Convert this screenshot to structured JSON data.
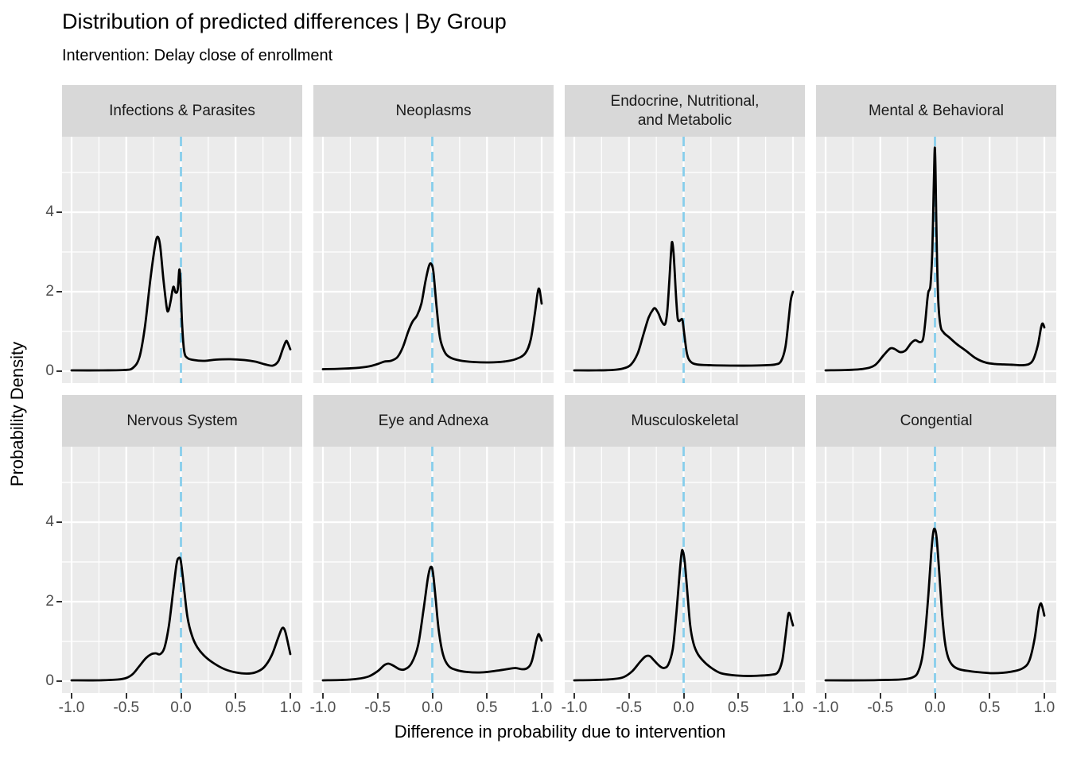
{
  "title": "Distribution of predicted differences | By Group",
  "subtitle": "Intervention: Delay close of enrollment",
  "chart_data": {
    "type": "line",
    "title": "Distribution of predicted differences | By Group",
    "subtitle": "Intervention: Delay close of enrollment",
    "xlabel": "Difference in probability due to intervention",
    "ylabel": "Probability Density",
    "x_ticks": [
      "-1.0",
      "-0.5",
      "0.0",
      "0.5",
      "1.0"
    ],
    "x_tick_values": [
      -1,
      -0.5,
      0,
      0.5,
      1
    ],
    "y_ticks": [
      "0",
      "2",
      "4"
    ],
    "y_tick_values": [
      0,
      2,
      4
    ],
    "x_minor_gridlines": [
      -0.75,
      -0.25,
      0.25,
      0.75
    ],
    "y_minor_gridlines": [
      1,
      3,
      5
    ],
    "xlim": [
      -1.09,
      1.11
    ],
    "ylim": [
      -0.3,
      5.9
    ],
    "grid": "white major and minor gridlines on gray panel background",
    "legend_position": "none",
    "facet_layout": {
      "rows": 2,
      "cols": 4
    },
    "reference_line": {
      "x": 0,
      "style": "dashed",
      "color": "#87CEEB"
    },
    "facets": [
      {
        "title": "Infections & Parasites",
        "points": [
          [
            -1,
            0.02
          ],
          [
            -0.72,
            0.02
          ],
          [
            -0.52,
            0.03
          ],
          [
            -0.44,
            0.08
          ],
          [
            -0.38,
            0.35
          ],
          [
            -0.33,
            1.1
          ],
          [
            -0.28,
            2.3
          ],
          [
            -0.24,
            3.1
          ],
          [
            -0.215,
            3.38
          ],
          [
            -0.19,
            3.15
          ],
          [
            -0.16,
            2.3
          ],
          [
            -0.13,
            1.6
          ],
          [
            -0.115,
            1.52
          ],
          [
            -0.095,
            1.75
          ],
          [
            -0.07,
            2.12
          ],
          [
            -0.05,
            1.98
          ],
          [
            -0.03,
            2.05
          ],
          [
            -0.015,
            2.55
          ],
          [
            -0.005,
            2.3
          ],
          [
            0.01,
            1.2
          ],
          [
            0.03,
            0.5
          ],
          [
            0.06,
            0.33
          ],
          [
            0.12,
            0.28
          ],
          [
            0.22,
            0.26
          ],
          [
            0.32,
            0.29
          ],
          [
            0.45,
            0.3
          ],
          [
            0.58,
            0.28
          ],
          [
            0.68,
            0.24
          ],
          [
            0.77,
            0.17
          ],
          [
            0.84,
            0.14
          ],
          [
            0.89,
            0.25
          ],
          [
            0.93,
            0.55
          ],
          [
            0.96,
            0.75
          ],
          [
            0.975,
            0.72
          ],
          [
            1,
            0.55
          ]
        ]
      },
      {
        "title": "Neoplasms",
        "points": [
          [
            -1,
            0.05
          ],
          [
            -0.85,
            0.06
          ],
          [
            -0.7,
            0.08
          ],
          [
            -0.58,
            0.12
          ],
          [
            -0.5,
            0.18
          ],
          [
            -0.44,
            0.24
          ],
          [
            -0.38,
            0.26
          ],
          [
            -0.32,
            0.35
          ],
          [
            -0.27,
            0.6
          ],
          [
            -0.22,
            1.0
          ],
          [
            -0.18,
            1.25
          ],
          [
            -0.14,
            1.4
          ],
          [
            -0.1,
            1.7
          ],
          [
            -0.06,
            2.3
          ],
          [
            -0.03,
            2.65
          ],
          [
            -0.01,
            2.7
          ],
          [
            0.01,
            2.5
          ],
          [
            0.04,
            1.6
          ],
          [
            0.07,
            0.85
          ],
          [
            0.11,
            0.5
          ],
          [
            0.16,
            0.35
          ],
          [
            0.25,
            0.27
          ],
          [
            0.38,
            0.23
          ],
          [
            0.52,
            0.22
          ],
          [
            0.65,
            0.24
          ],
          [
            0.76,
            0.3
          ],
          [
            0.85,
            0.45
          ],
          [
            0.9,
            0.8
          ],
          [
            0.94,
            1.5
          ],
          [
            0.965,
            2.0
          ],
          [
            0.98,
            2.05
          ],
          [
            1,
            1.7
          ]
        ]
      },
      {
        "title": "Endocrine, Nutritional,\nand Metabolic",
        "points": [
          [
            -1,
            0.02
          ],
          [
            -0.8,
            0.02
          ],
          [
            -0.65,
            0.03
          ],
          [
            -0.55,
            0.07
          ],
          [
            -0.48,
            0.17
          ],
          [
            -0.42,
            0.45
          ],
          [
            -0.37,
            0.9
          ],
          [
            -0.32,
            1.35
          ],
          [
            -0.28,
            1.55
          ],
          [
            -0.26,
            1.58
          ],
          [
            -0.23,
            1.45
          ],
          [
            -0.2,
            1.25
          ],
          [
            -0.17,
            1.18
          ],
          [
            -0.15,
            1.5
          ],
          [
            -0.13,
            2.3
          ],
          [
            -0.115,
            3.0
          ],
          [
            -0.105,
            3.25
          ],
          [
            -0.09,
            2.9
          ],
          [
            -0.07,
            1.9
          ],
          [
            -0.055,
            1.35
          ],
          [
            -0.04,
            1.26
          ],
          [
            -0.025,
            1.3
          ],
          [
            -0.01,
            1.28
          ],
          [
            0.005,
            0.95
          ],
          [
            0.03,
            0.45
          ],
          [
            0.06,
            0.25
          ],
          [
            0.12,
            0.17
          ],
          [
            0.25,
            0.15
          ],
          [
            0.45,
            0.14
          ],
          [
            0.62,
            0.14
          ],
          [
            0.75,
            0.15
          ],
          [
            0.84,
            0.17
          ],
          [
            0.89,
            0.25
          ],
          [
            0.93,
            0.6
          ],
          [
            0.96,
            1.3
          ],
          [
            0.98,
            1.8
          ],
          [
            1,
            2.0
          ]
        ]
      },
      {
        "title": "Mental & Behavioral",
        "points": [
          [
            -1,
            0.02
          ],
          [
            -0.8,
            0.03
          ],
          [
            -0.65,
            0.06
          ],
          [
            -0.55,
            0.15
          ],
          [
            -0.47,
            0.4
          ],
          [
            -0.41,
            0.57
          ],
          [
            -0.37,
            0.56
          ],
          [
            -0.32,
            0.48
          ],
          [
            -0.27,
            0.52
          ],
          [
            -0.22,
            0.7
          ],
          [
            -0.18,
            0.78
          ],
          [
            -0.14,
            0.73
          ],
          [
            -0.11,
            0.8
          ],
          [
            -0.09,
            1.2
          ],
          [
            -0.07,
            1.8
          ],
          [
            -0.06,
            2.0
          ],
          [
            -0.05,
            2.05
          ],
          [
            -0.04,
            2.2
          ],
          [
            -0.025,
            3.0
          ],
          [
            -0.012,
            4.5
          ],
          [
            -0.004,
            5.45
          ],
          [
            0,
            5.58
          ],
          [
            0.006,
            4.9
          ],
          [
            0.015,
            3.3
          ],
          [
            0.03,
            1.8
          ],
          [
            0.05,
            1.15
          ],
          [
            0.08,
            0.97
          ],
          [
            0.13,
            0.85
          ],
          [
            0.2,
            0.68
          ],
          [
            0.28,
            0.52
          ],
          [
            0.37,
            0.33
          ],
          [
            0.46,
            0.22
          ],
          [
            0.55,
            0.18
          ],
          [
            0.63,
            0.17
          ],
          [
            0.72,
            0.16
          ],
          [
            0.8,
            0.15
          ],
          [
            0.86,
            0.18
          ],
          [
            0.9,
            0.3
          ],
          [
            0.94,
            0.65
          ],
          [
            0.97,
            1.1
          ],
          [
            0.985,
            1.2
          ],
          [
            1,
            1.1
          ]
        ]
      },
      {
        "title": "Nervous System",
        "points": [
          [
            -1,
            0.02
          ],
          [
            -0.75,
            0.02
          ],
          [
            -0.58,
            0.04
          ],
          [
            -0.5,
            0.08
          ],
          [
            -0.44,
            0.18
          ],
          [
            -0.38,
            0.38
          ],
          [
            -0.32,
            0.58
          ],
          [
            -0.27,
            0.68
          ],
          [
            -0.23,
            0.7
          ],
          [
            -0.19,
            0.68
          ],
          [
            -0.15,
            0.85
          ],
          [
            -0.11,
            1.4
          ],
          [
            -0.07,
            2.3
          ],
          [
            -0.04,
            2.95
          ],
          [
            -0.02,
            3.1
          ],
          [
            0,
            3.0
          ],
          [
            0.03,
            2.3
          ],
          [
            0.06,
            1.6
          ],
          [
            0.1,
            1.15
          ],
          [
            0.15,
            0.85
          ],
          [
            0.22,
            0.62
          ],
          [
            0.3,
            0.45
          ],
          [
            0.4,
            0.3
          ],
          [
            0.5,
            0.22
          ],
          [
            0.6,
            0.19
          ],
          [
            0.68,
            0.22
          ],
          [
            0.76,
            0.35
          ],
          [
            0.83,
            0.65
          ],
          [
            0.89,
            1.1
          ],
          [
            0.925,
            1.33
          ],
          [
            0.95,
            1.28
          ],
          [
            0.975,
            1.0
          ],
          [
            1,
            0.68
          ]
        ]
      },
      {
        "title": "Eye and Adnexa",
        "points": [
          [
            -1,
            0.02
          ],
          [
            -0.82,
            0.03
          ],
          [
            -0.68,
            0.06
          ],
          [
            -0.58,
            0.12
          ],
          [
            -0.5,
            0.25
          ],
          [
            -0.44,
            0.4
          ],
          [
            -0.4,
            0.44
          ],
          [
            -0.35,
            0.38
          ],
          [
            -0.3,
            0.3
          ],
          [
            -0.25,
            0.3
          ],
          [
            -0.19,
            0.45
          ],
          [
            -0.13,
            0.9
          ],
          [
            -0.08,
            1.8
          ],
          [
            -0.04,
            2.6
          ],
          [
            -0.015,
            2.87
          ],
          [
            0.005,
            2.75
          ],
          [
            0.03,
            2.1
          ],
          [
            0.06,
            1.25
          ],
          [
            0.1,
            0.65
          ],
          [
            0.15,
            0.38
          ],
          [
            0.22,
            0.28
          ],
          [
            0.32,
            0.23
          ],
          [
            0.45,
            0.22
          ],
          [
            0.58,
            0.26
          ],
          [
            0.68,
            0.3
          ],
          [
            0.76,
            0.33
          ],
          [
            0.82,
            0.3
          ],
          [
            0.87,
            0.33
          ],
          [
            0.91,
            0.5
          ],
          [
            0.95,
            1.0
          ],
          [
            0.97,
            1.18
          ],
          [
            0.985,
            1.12
          ],
          [
            1,
            1.02
          ]
        ]
      },
      {
        "title": "Musculoskeletal",
        "points": [
          [
            -1,
            0.02
          ],
          [
            -0.8,
            0.03
          ],
          [
            -0.65,
            0.05
          ],
          [
            -0.55,
            0.1
          ],
          [
            -0.47,
            0.25
          ],
          [
            -0.4,
            0.48
          ],
          [
            -0.35,
            0.62
          ],
          [
            -0.31,
            0.63
          ],
          [
            -0.27,
            0.52
          ],
          [
            -0.22,
            0.38
          ],
          [
            -0.18,
            0.33
          ],
          [
            -0.14,
            0.42
          ],
          [
            -0.1,
            0.8
          ],
          [
            -0.07,
            1.6
          ],
          [
            -0.04,
            2.6
          ],
          [
            -0.02,
            3.2
          ],
          [
            -0.008,
            3.28
          ],
          [
            0.01,
            3.0
          ],
          [
            0.035,
            2.2
          ],
          [
            0.06,
            1.4
          ],
          [
            0.09,
            0.95
          ],
          [
            0.13,
            0.68
          ],
          [
            0.19,
            0.48
          ],
          [
            0.26,
            0.32
          ],
          [
            0.34,
            0.2
          ],
          [
            0.45,
            0.15
          ],
          [
            0.58,
            0.13
          ],
          [
            0.7,
            0.14
          ],
          [
            0.8,
            0.16
          ],
          [
            0.86,
            0.22
          ],
          [
            0.9,
            0.5
          ],
          [
            0.93,
            1.1
          ],
          [
            0.955,
            1.65
          ],
          [
            0.97,
            1.7
          ],
          [
            0.985,
            1.55
          ],
          [
            1,
            1.4
          ]
        ]
      },
      {
        "title": "Congential",
        "points": [
          [
            -1,
            0.02
          ],
          [
            -0.65,
            0.02
          ],
          [
            -0.45,
            0.03
          ],
          [
            -0.32,
            0.04
          ],
          [
            -0.25,
            0.06
          ],
          [
            -0.2,
            0.1
          ],
          [
            -0.16,
            0.2
          ],
          [
            -0.12,
            0.55
          ],
          [
            -0.09,
            1.2
          ],
          [
            -0.06,
            2.2
          ],
          [
            -0.035,
            3.2
          ],
          [
            -0.015,
            3.75
          ],
          [
            0,
            3.82
          ],
          [
            0.015,
            3.6
          ],
          [
            0.04,
            2.7
          ],
          [
            0.065,
            1.7
          ],
          [
            0.09,
            1.0
          ],
          [
            0.12,
            0.6
          ],
          [
            0.16,
            0.4
          ],
          [
            0.22,
            0.3
          ],
          [
            0.32,
            0.25
          ],
          [
            0.42,
            0.22
          ],
          [
            0.52,
            0.2
          ],
          [
            0.62,
            0.21
          ],
          [
            0.72,
            0.25
          ],
          [
            0.8,
            0.32
          ],
          [
            0.86,
            0.5
          ],
          [
            0.91,
            1.05
          ],
          [
            0.945,
            1.75
          ],
          [
            0.965,
            1.95
          ],
          [
            0.98,
            1.88
          ],
          [
            1,
            1.65
          ]
        ]
      }
    ]
  },
  "colors": {
    "panel_background": "#ebebeb",
    "strip_background": "#d8d8d8",
    "gridline": "#ffffff",
    "curve": "#000000",
    "reference_line": "#87CEEB",
    "tick_text": "#4d4d4d",
    "tick_mark": "#333333",
    "text": "#000000"
  }
}
